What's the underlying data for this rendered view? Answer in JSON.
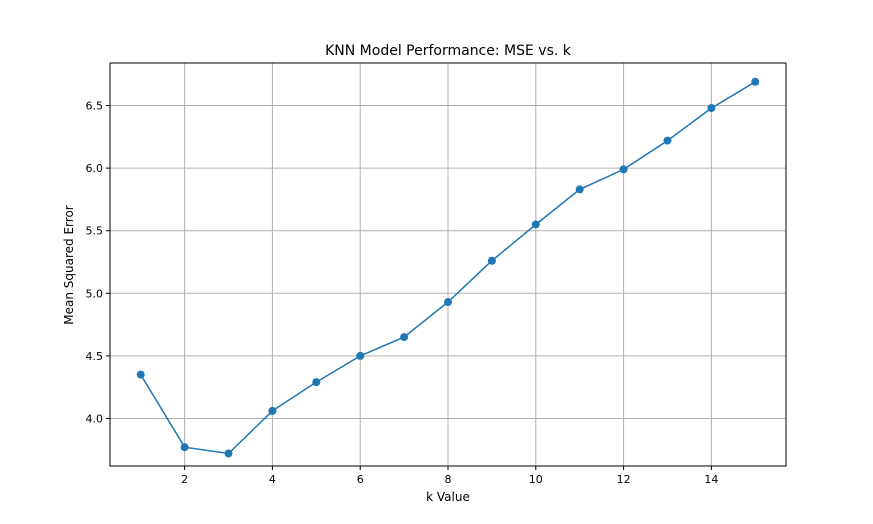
{
  "chart_data": {
    "type": "line",
    "title": "KNN Model Performance: MSE vs. k",
    "xlabel": "k Value",
    "ylabel": "Mean Squared Error",
    "x": [
      1,
      2,
      3,
      4,
      5,
      6,
      7,
      8,
      9,
      10,
      11,
      12,
      13,
      14,
      15
    ],
    "series": [
      {
        "values": [
          4.35,
          3.77,
          3.72,
          4.06,
          4.29,
          4.5,
          4.65,
          4.93,
          5.26,
          5.55,
          5.83,
          5.99,
          6.22,
          6.48,
          6.69
        ],
        "color": "#1f77b4",
        "marker": "circle"
      }
    ],
    "xlim": [
      0.3,
      15.7
    ],
    "ylim": [
      3.62,
      6.84
    ],
    "xticks": [
      2,
      4,
      6,
      8,
      10,
      12,
      14
    ],
    "xtick_labels": [
      "2",
      "4",
      "6",
      "8",
      "10",
      "12",
      "14"
    ],
    "yticks": [
      4.0,
      4.5,
      5.0,
      5.5,
      6.0,
      6.5
    ],
    "ytick_labels": [
      "4.0",
      "4.5",
      "5.0",
      "5.5",
      "6.0",
      "6.5"
    ],
    "grid": true
  }
}
